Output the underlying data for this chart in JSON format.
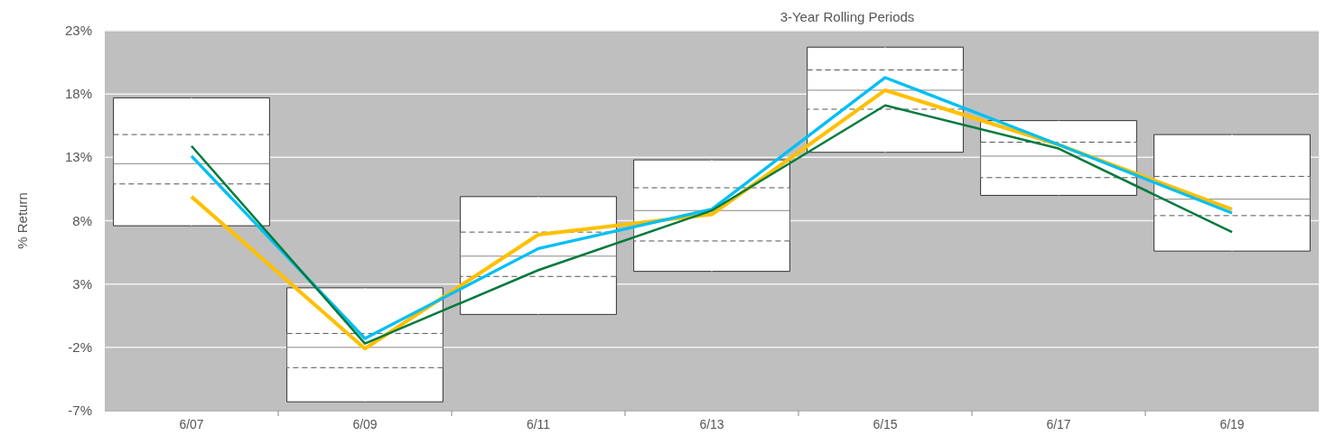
{
  "chart_data": {
    "type": "box",
    "title": "3-Year Rolling Periods",
    "ylabel": "% Return",
    "categories": [
      "6/07",
      "6/09",
      "6/11",
      "6/13",
      "6/15",
      "6/17",
      "6/19"
    ],
    "boxes": [
      {
        "low": 7.6,
        "q1": 10.9,
        "median": 12.5,
        "q3": 14.8,
        "high": 17.7
      },
      {
        "low": -6.3,
        "q1": -3.6,
        "median": -2.0,
        "q3": -0.9,
        "high": 2.7
      },
      {
        "low": 0.6,
        "q1": 3.6,
        "median": 5.2,
        "q3": 7.1,
        "high": 9.9
      },
      {
        "low": 4.0,
        "q1": 6.4,
        "median": 8.8,
        "q3": 10.6,
        "high": 12.8
      },
      {
        "low": 13.4,
        "q1": 16.8,
        "median": 18.3,
        "q3": 19.9,
        "high": 21.7
      },
      {
        "low": 10.0,
        "q1": 11.4,
        "median": 13.1,
        "q3": 14.2,
        "high": 15.9
      },
      {
        "low": 5.6,
        "q1": 8.4,
        "median": 9.7,
        "q3": 11.5,
        "high": 14.8
      }
    ],
    "series": [
      {
        "type": "line",
        "color": "#ffc000",
        "values": [
          9.9,
          -2.1,
          6.9,
          8.5,
          18.3,
          14.0,
          8.9
        ]
      },
      {
        "type": "line",
        "color": "#00bff3",
        "values": [
          13.1,
          -1.3,
          5.8,
          8.9,
          19.3,
          14.0,
          8.6
        ]
      },
      {
        "type": "line",
        "color": "#007a3d",
        "values": [
          13.9,
          -1.7,
          4.1,
          8.8,
          17.1,
          13.7,
          7.1
        ]
      }
    ],
    "ylim": [
      -7,
      23
    ],
    "yticks": [
      {
        "value": -7,
        "label": "-7%"
      },
      {
        "value": -2,
        "label": "-2%"
      },
      {
        "value": 3,
        "label": "3%"
      },
      {
        "value": 8,
        "label": "8%"
      },
      {
        "value": 13,
        "label": "13%"
      },
      {
        "value": 18,
        "label": "18%"
      },
      {
        "value": 23,
        "label": "23%"
      }
    ],
    "grid": "y"
  }
}
